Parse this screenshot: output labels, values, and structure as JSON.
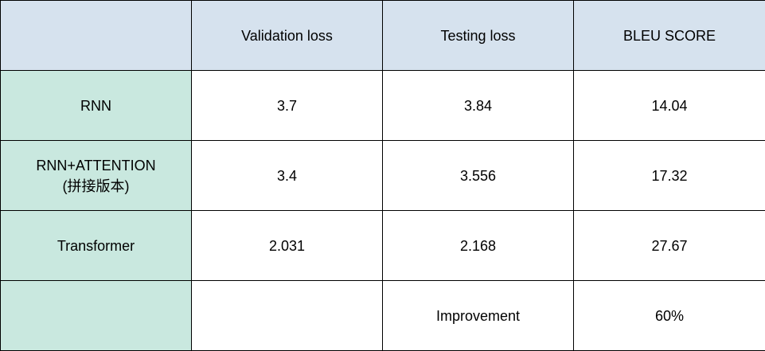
{
  "table": {
    "headers": [
      "",
      "Validation loss",
      "Testing loss",
      "BLEU SCORE"
    ],
    "rows": [
      {
        "label": [
          "RNN"
        ],
        "cells": [
          "3.7",
          "3.84",
          "14.04"
        ]
      },
      {
        "label": [
          "RNN+ATTENTION",
          "(拼接版本)"
        ],
        "cells": [
          "3.4",
          "3.556",
          "17.32"
        ]
      },
      {
        "label": [
          "Transformer"
        ],
        "cells": [
          "2.031",
          "2.168",
          "27.67"
        ]
      },
      {
        "label": [
          ""
        ],
        "cells": [
          "",
          "Improvement",
          "60%"
        ]
      }
    ]
  },
  "colors": {
    "header_bg": "#d6e2ee",
    "row_label_bg": "#c9e8df",
    "cell_bg": "#ffffff",
    "border": "#000000"
  }
}
